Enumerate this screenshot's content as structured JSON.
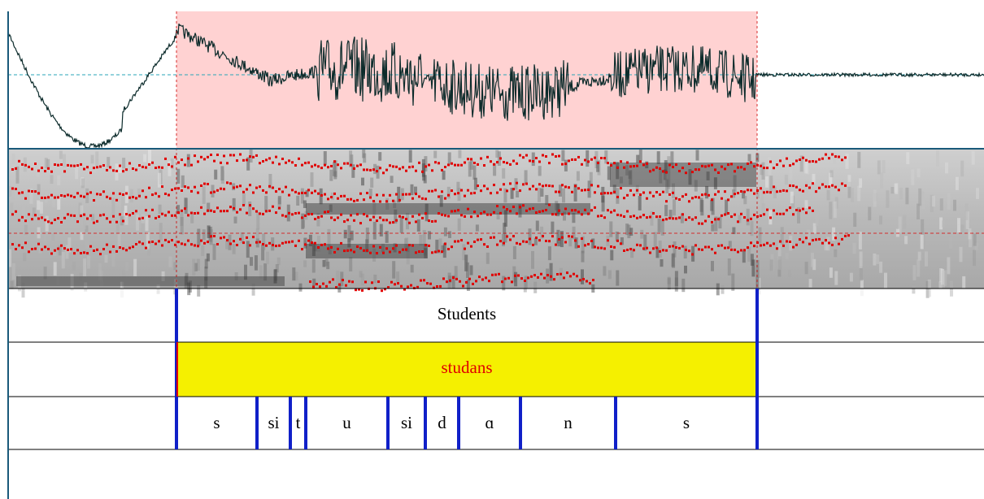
{
  "tiers": [
    {
      "intervals": [
        "Students"
      ]
    },
    {
      "intervals": [
        "studans"
      ]
    },
    {
      "intervals": [
        "s",
        "si",
        "t",
        "u",
        "si",
        "d",
        "ɑ",
        "n",
        "s"
      ]
    }
  ]
}
